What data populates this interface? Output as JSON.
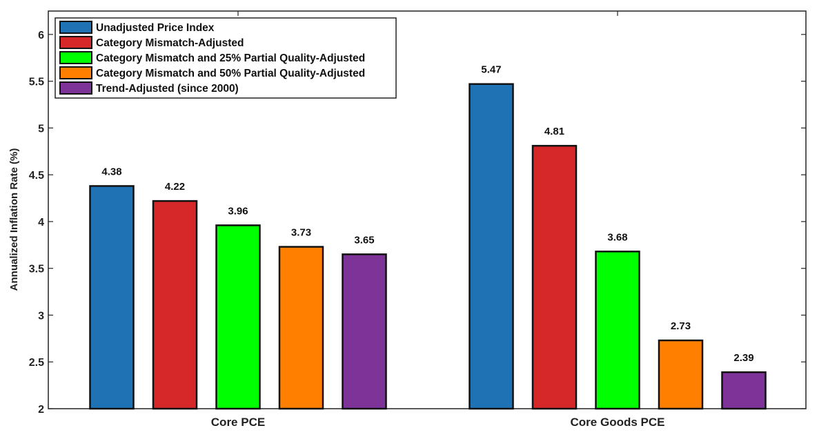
{
  "chart_data": {
    "type": "bar",
    "categories": [
      "Core PCE",
      "Core Goods PCE"
    ],
    "ylabel": "Annualized Inflation Rate (%)",
    "xlabel": "",
    "ylim": [
      2,
      6.25
    ],
    "yticks": [
      2,
      2.5,
      3,
      3.5,
      4,
      4.5,
      5,
      5.5,
      6
    ],
    "ytick_labels": [
      "2",
      "2.5",
      "3",
      "3.5",
      "4",
      "4.5",
      "5",
      "5.5",
      "6"
    ],
    "grid": false,
    "legend_position": "top-left",
    "series": [
      {
        "name": "Unadjusted Price Index",
        "color": "#1f72b4",
        "values": [
          4.38,
          5.47
        ],
        "labels": [
          "4.38",
          "5.47"
        ]
      },
      {
        "name": "Category Mismatch-Adjusted",
        "color": "#d62828",
        "values": [
          4.22,
          4.81
        ],
        "labels": [
          "4.22",
          "4.81"
        ]
      },
      {
        "name": "Category Mismatch and 25% Partial Quality-Adjusted",
        "color": "#00ff00",
        "values": [
          3.96,
          3.68
        ],
        "labels": [
          "3.96",
          "3.68"
        ]
      },
      {
        "name": "Category Mismatch and 50% Partial Quality-Adjusted",
        "color": "#ff8000",
        "values": [
          3.73,
          2.73
        ],
        "labels": [
          "3.73",
          "2.73"
        ]
      },
      {
        "name": "Trend-Adjusted (since 2000)",
        "color": "#7e3398",
        "values": [
          3.65,
          2.39
        ],
        "labels": [
          "3.65",
          "2.39"
        ]
      }
    ]
  }
}
